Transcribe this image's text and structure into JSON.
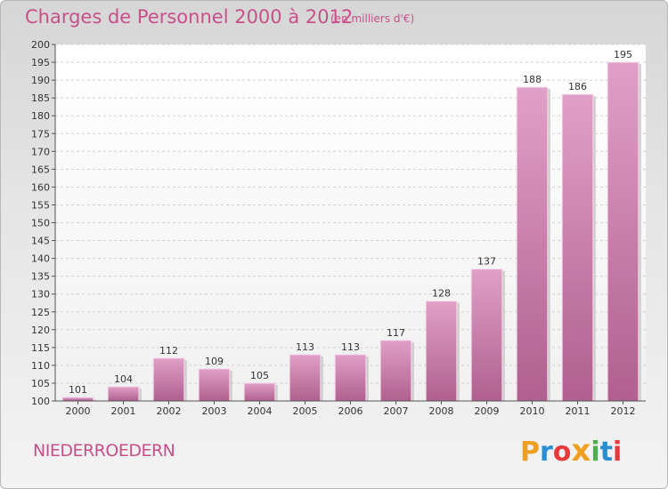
{
  "header": {
    "title": "Charges de Personnel 2000 à 2012",
    "subtitle": "(en milliers d'€)"
  },
  "footer": {
    "place": "NIEDERROEDERN",
    "logo": "Proxiti",
    "logo_letters": [
      "P",
      "r",
      "o",
      "x",
      "i",
      "t",
      "i"
    ],
    "logo_colors": [
      "#f0a020",
      "#2a8fd0",
      "#e83a3a",
      "#f0a020",
      "#4cae4c",
      "#2a8fd0",
      "#e83a3a"
    ]
  },
  "colors": {
    "accent": "#c8508a",
    "bar_top": "#e0a0c8",
    "bar_bottom": "#b0608e"
  },
  "chart_data": {
    "type": "bar",
    "title": "Charges de Personnel 2000 à 2012",
    "subtitle": "(en milliers d'€)",
    "categories": [
      "2000",
      "2001",
      "2002",
      "2003",
      "2004",
      "2005",
      "2006",
      "2007",
      "2008",
      "2009",
      "2010",
      "2011",
      "2012"
    ],
    "values": [
      101,
      104,
      112,
      109,
      105,
      113,
      113,
      117,
      128,
      137,
      188,
      186,
      195
    ],
    "ylim": [
      100,
      200
    ],
    "yticks": [
      100,
      105,
      110,
      115,
      120,
      125,
      130,
      135,
      140,
      145,
      150,
      155,
      160,
      165,
      170,
      175,
      180,
      185,
      190,
      195,
      200
    ],
    "grid": true,
    "legend": "none",
    "data_labels": true
  }
}
